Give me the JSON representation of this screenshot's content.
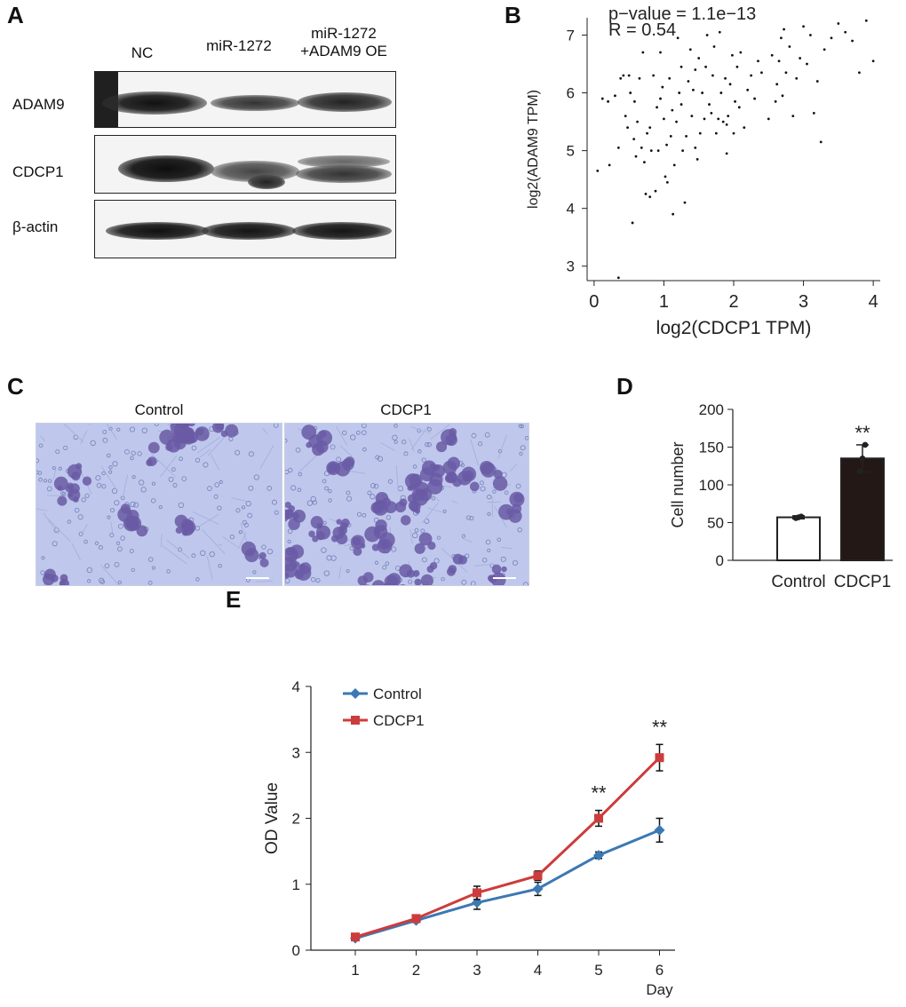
{
  "panels": {
    "A": "A",
    "B": "B",
    "C": "C",
    "D": "D",
    "E": "E"
  },
  "blot": {
    "lanes": [
      "NC",
      "miR-1272",
      "miR-1272\n+ADAM9 OE"
    ],
    "rows": [
      "ADAM9",
      "CDCP1",
      "β-actin"
    ]
  },
  "micrographs": {
    "titles": [
      "Control",
      "CDCP1"
    ]
  },
  "chart_data": [
    {
      "id": "B",
      "type": "scatter",
      "annotation_lines": [
        "p−value = 1.1e−13",
        "R = 0.54"
      ],
      "xlabel": "log2(CDCP1 TPM)",
      "ylabel": "log2(ADAM9 TPM)",
      "xlim": [
        -0.1,
        4.1
      ],
      "ylim": [
        2.75,
        7.3
      ],
      "xticks": [
        0,
        1,
        2,
        3,
        4
      ],
      "yticks": [
        3,
        4,
        5,
        6,
        7
      ],
      "points": [
        [
          0.05,
          4.65
        ],
        [
          0.12,
          5.9
        ],
        [
          0.2,
          5.85
        ],
        [
          0.22,
          4.75
        ],
        [
          0.3,
          5.95
        ],
        [
          0.35,
          2.8
        ],
        [
          0.35,
          5.05
        ],
        [
          0.38,
          6.25
        ],
        [
          0.42,
          6.3
        ],
        [
          0.45,
          5.6
        ],
        [
          0.48,
          5.4
        ],
        [
          0.5,
          6.3
        ],
        [
          0.52,
          6.0
        ],
        [
          0.55,
          3.75
        ],
        [
          0.57,
          5.2
        ],
        [
          0.6,
          4.9
        ],
        [
          0.62,
          5.5
        ],
        [
          0.65,
          6.25
        ],
        [
          0.68,
          5.05
        ],
        [
          0.7,
          6.7
        ],
        [
          0.72,
          4.8
        ],
        [
          0.74,
          4.25
        ],
        [
          0.76,
          5.3
        ],
        [
          0.8,
          5.4
        ],
        [
          0.82,
          5.0
        ],
        [
          0.85,
          6.3
        ],
        [
          0.88,
          4.3
        ],
        [
          0.9,
          5.75
        ],
        [
          0.92,
          5.0
        ],
        [
          0.95,
          6.7
        ],
        [
          0.98,
          6.1
        ],
        [
          1.0,
          5.55
        ],
        [
          1.02,
          4.55
        ],
        [
          1.04,
          5.1
        ],
        [
          1.05,
          4.45
        ],
        [
          1.08,
          6.25
        ],
        [
          1.1,
          5.25
        ],
        [
          1.12,
          5.7
        ],
        [
          1.13,
          3.9
        ],
        [
          1.15,
          4.75
        ],
        [
          1.18,
          5.5
        ],
        [
          1.2,
          6.95
        ],
        [
          1.22,
          6.0
        ],
        [
          1.25,
          5.8
        ],
        [
          1.27,
          5.0
        ],
        [
          1.3,
          4.1
        ],
        [
          1.32,
          5.25
        ],
        [
          1.35,
          6.2
        ],
        [
          1.38,
          6.75
        ],
        [
          1.4,
          5.6
        ],
        [
          1.42,
          6.05
        ],
        [
          1.45,
          5.05
        ],
        [
          1.48,
          4.85
        ],
        [
          1.5,
          6.6
        ],
        [
          1.52,
          5.3
        ],
        [
          1.55,
          6.0
        ],
        [
          1.58,
          5.55
        ],
        [
          1.6,
          6.45
        ],
        [
          1.62,
          7.0
        ],
        [
          1.65,
          5.8
        ],
        [
          1.68,
          5.65
        ],
        [
          1.7,
          6.3
        ],
        [
          1.72,
          6.8
        ],
        [
          1.75,
          5.3
        ],
        [
          1.78,
          5.55
        ],
        [
          1.8,
          7.05
        ],
        [
          1.82,
          6.0
        ],
        [
          1.85,
          5.5
        ],
        [
          1.88,
          6.25
        ],
        [
          1.9,
          4.95
        ],
        [
          1.92,
          5.6
        ],
        [
          1.95,
          6.15
        ],
        [
          1.98,
          6.65
        ],
        [
          2.0,
          5.3
        ],
        [
          2.02,
          5.85
        ],
        [
          2.05,
          6.45
        ],
        [
          2.08,
          5.75
        ],
        [
          2.1,
          6.7
        ],
        [
          2.15,
          5.4
        ],
        [
          2.2,
          6.05
        ],
        [
          2.25,
          6.3
        ],
        [
          2.3,
          5.9
        ],
        [
          2.4,
          6.35
        ],
        [
          2.5,
          5.55
        ],
        [
          2.6,
          5.85
        ],
        [
          2.62,
          6.15
        ],
        [
          2.65,
          6.55
        ],
        [
          2.68,
          6.95
        ],
        [
          2.7,
          5.95
        ],
        [
          2.75,
          6.35
        ],
        [
          2.8,
          6.8
        ],
        [
          2.85,
          5.6
        ],
        [
          2.9,
          6.25
        ],
        [
          2.95,
          6.6
        ],
        [
          3.0,
          7.15
        ],
        [
          3.05,
          6.5
        ],
        [
          3.1,
          7.0
        ],
        [
          3.2,
          6.2
        ],
        [
          3.25,
          5.15
        ],
        [
          3.3,
          6.75
        ],
        [
          3.4,
          6.95
        ],
        [
          3.5,
          7.2
        ],
        [
          3.6,
          7.05
        ],
        [
          3.7,
          6.9
        ],
        [
          3.8,
          6.35
        ],
        [
          3.9,
          7.25
        ],
        [
          4.0,
          6.55
        ],
        [
          2.55,
          6.65
        ],
        [
          2.35,
          6.55
        ],
        [
          1.45,
          6.4
        ],
        [
          0.95,
          5.9
        ],
        [
          1.25,
          6.45
        ],
        [
          0.8,
          4.2
        ],
        [
          0.58,
          5.85
        ],
        [
          1.9,
          5.45
        ],
        [
          2.72,
          7.1
        ],
        [
          3.15,
          5.65
        ]
      ]
    },
    {
      "id": "D",
      "type": "bar",
      "ylabel": "Cell number",
      "categories": [
        "Control",
        "CDCP1"
      ],
      "values": [
        57,
        135
      ],
      "errors": [
        2,
        18
      ],
      "replicates": [
        [
          56,
          57,
          58
        ],
        [
          118,
          135,
          153
        ]
      ],
      "significance": [
        "",
        "**"
      ],
      "ylim": [
        0,
        200
      ],
      "yticks": [
        0,
        50,
        100,
        150,
        200
      ],
      "colors": [
        "#ffffff",
        "#231815"
      ]
    },
    {
      "id": "E",
      "type": "line",
      "ylabel": "OD Value",
      "xlabel": "Day",
      "x": [
        1,
        2,
        3,
        4,
        5,
        6
      ],
      "ylim": [
        0,
        4
      ],
      "yticks": [
        0,
        1,
        2,
        3,
        4
      ],
      "series": [
        {
          "name": "Control",
          "color": "#3c78b4",
          "values": [
            0.18,
            0.45,
            0.72,
            0.93,
            1.44,
            1.82
          ],
          "errors": [
            0.03,
            0.03,
            0.1,
            0.1,
            0.05,
            0.18
          ]
        },
        {
          "name": "CDCP1",
          "color": "#cd3c3c",
          "values": [
            0.2,
            0.48,
            0.87,
            1.13,
            2.0,
            2.92
          ],
          "errors": [
            0.03,
            0.04,
            0.1,
            0.07,
            0.12,
            0.2
          ]
        }
      ],
      "significance": [
        {
          "x": 5,
          "label": "**"
        },
        {
          "x": 6,
          "label": "**"
        }
      ]
    }
  ]
}
